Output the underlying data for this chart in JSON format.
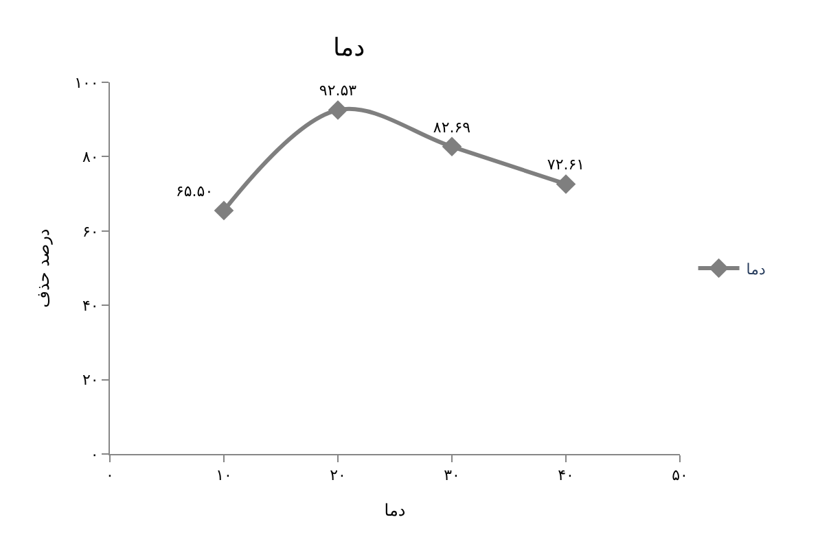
{
  "chart_data": {
    "type": "line",
    "title": "دما",
    "xlabel": "دما",
    "ylabel": "درصد حذف",
    "x": [
      10,
      20,
      30,
      40
    ],
    "series": [
      {
        "name": "دما",
        "color": "#7f7f7f",
        "values": [
          65.5,
          92.53,
          82.69,
          72.61
        ],
        "value_labels": [
          "۶۵.۵۰",
          "۹۲.۵۳",
          "۸۲.۶۹",
          "۷۲.۶۱"
        ]
      }
    ],
    "xlim": [
      0,
      50
    ],
    "xticks": [
      {
        "value": 0,
        "label": "۰"
      },
      {
        "value": 10,
        "label": "۱۰"
      },
      {
        "value": 20,
        "label": "۲۰"
      },
      {
        "value": 30,
        "label": "۳۰"
      },
      {
        "value": 40,
        "label": "۴۰"
      },
      {
        "value": 50,
        "label": "۵۰"
      }
    ],
    "ylim": [
      0,
      100
    ],
    "yticks": [
      {
        "value": 0,
        "label": "۰"
      },
      {
        "value": 20,
        "label": "۲۰"
      },
      {
        "value": 40,
        "label": "۴۰"
      },
      {
        "value": 60,
        "label": "۶۰"
      },
      {
        "value": 80,
        "label": "۸۰"
      },
      {
        "value": 100,
        "label": "۱۰۰"
      }
    ],
    "legend": "right",
    "marker": "diamond",
    "line_style": "solid"
  }
}
